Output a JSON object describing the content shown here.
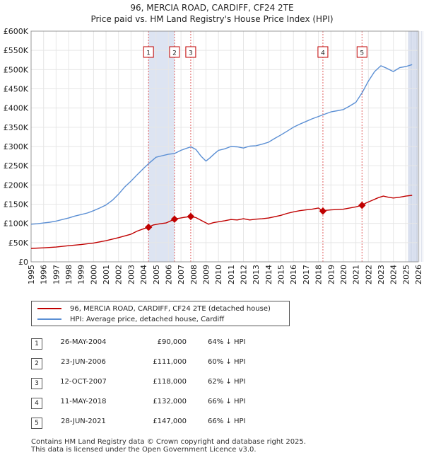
{
  "header": {
    "title_line1": "96, MERCIA ROAD, CARDIFF, CF24 2TE",
    "title_line2": "Price paid vs. HM Land Registry's House Price Index (HPI)"
  },
  "colors": {
    "property_line": "#c00000",
    "hpi_line": "#5b8fd4",
    "shade": "#dde4f2",
    "marker_line": "#e06060"
  },
  "chart_data": {
    "type": "line",
    "title": "Price paid vs. HM Land Registry's House Price Index (HPI)",
    "xlim": [
      1995,
      2026
    ],
    "ylim": [
      0,
      600000
    ],
    "x_ticks": [
      "1995",
      "1996",
      "1997",
      "1998",
      "1999",
      "2000",
      "2001",
      "2002",
      "2003",
      "2004",
      "2005",
      "2006",
      "2007",
      "2008",
      "2009",
      "2010",
      "2011",
      "2012",
      "2013",
      "2014",
      "2015",
      "2016",
      "2017",
      "2018",
      "2019",
      "2020",
      "2021",
      "2022",
      "2023",
      "2024",
      "2025",
      "2026"
    ],
    "y_ticks": [
      {
        "value": 0,
        "label": "£0"
      },
      {
        "value": 50000,
        "label": "£50K"
      },
      {
        "value": 100000,
        "label": "£100K"
      },
      {
        "value": 150000,
        "label": "£150K"
      },
      {
        "value": 200000,
        "label": "£200K"
      },
      {
        "value": 250000,
        "label": "£250K"
      },
      {
        "value": 300000,
        "label": "£300K"
      },
      {
        "value": 350000,
        "label": "£350K"
      },
      {
        "value": 400000,
        "label": "£400K"
      },
      {
        "value": 450000,
        "label": "£450K"
      },
      {
        "value": 500000,
        "label": "£500K"
      },
      {
        "value": 550000,
        "label": "£550K"
      },
      {
        "value": 600000,
        "label": "£600K"
      }
    ],
    "series": [
      {
        "name": "96, MERCIA ROAD, CARDIFF, CF24 2TE (detached house)",
        "color": "#c00000",
        "x": [
          1995.0,
          1996.0,
          1997.0,
          1998.0,
          1999.0,
          2000.0,
          2001.0,
          2002.0,
          2003.0,
          2003.5,
          2004.0,
          2004.4,
          2004.8,
          2005.3,
          2005.8,
          2006.48,
          2006.8,
          2007.3,
          2007.78,
          2008.2,
          2008.6,
          2009.2,
          2009.6,
          2010.5,
          2011.0,
          2011.5,
          2012.0,
          2012.5,
          2013.0,
          2013.5,
          2014.0,
          2015.0,
          2015.5,
          2016.0,
          2016.5,
          2017.0,
          2017.5,
          2018.0,
          2018.36,
          2018.6,
          2019.0,
          2019.5,
          2020.0,
          2020.5,
          2021.0,
          2021.49,
          2021.8,
          2022.3,
          2022.8,
          2023.2,
          2023.6,
          2024.0,
          2024.5,
          2025.0,
          2025.5
        ],
        "y": [
          35000,
          36500,
          38500,
          42000,
          45000,
          49000,
          55000,
          63000,
          72000,
          80000,
          86000,
          90000,
          96000,
          99000,
          101000,
          111000,
          113000,
          116000,
          118000,
          115000,
          108000,
          98000,
          102000,
          107000,
          110000,
          109000,
          112000,
          109000,
          111000,
          112000,
          114000,
          121000,
          126000,
          130000,
          133000,
          135000,
          137000,
          140000,
          132000,
          134000,
          135000,
          136000,
          137000,
          140000,
          143000,
          147000,
          153000,
          160000,
          167000,
          171000,
          168000,
          166000,
          168000,
          171000,
          173000
        ]
      },
      {
        "name": "HPI: Average price, detached house, Cardiff",
        "color": "#5b8fd4",
        "x": [
          1995.0,
          1995.5,
          1996.0,
          1996.5,
          1997.0,
          1997.5,
          1998.0,
          1998.5,
          1999.0,
          1999.5,
          2000.0,
          2000.5,
          2001.0,
          2001.5,
          2002.0,
          2002.5,
          2003.0,
          2003.5,
          2004.0,
          2004.5,
          2005.0,
          2005.5,
          2006.0,
          2006.5,
          2007.0,
          2007.5,
          2007.8,
          2008.2,
          2008.6,
          2009.0,
          2009.3,
          2009.7,
          2010.0,
          2010.5,
          2011.0,
          2011.5,
          2012.0,
          2012.5,
          2013.0,
          2013.5,
          2014.0,
          2014.5,
          2015.0,
          2015.5,
          2016.0,
          2016.5,
          2017.0,
          2017.5,
          2018.0,
          2018.5,
          2019.0,
          2019.5,
          2020.0,
          2020.5,
          2021.0,
          2021.5,
          2022.0,
          2022.5,
          2023.0,
          2023.5,
          2024.0,
          2024.5,
          2025.0,
          2025.5
        ],
        "y": [
          98000,
          99000,
          101000,
          103000,
          106000,
          110000,
          114000,
          119000,
          123000,
          127000,
          133000,
          140000,
          148000,
          160000,
          176000,
          195000,
          210000,
          227000,
          243000,
          258000,
          272000,
          276000,
          280000,
          282000,
          290000,
          296000,
          299000,
          292000,
          275000,
          262000,
          270000,
          282000,
          290000,
          294000,
          300000,
          299000,
          296000,
          301000,
          302000,
          306000,
          311000,
          321000,
          330000,
          340000,
          350000,
          358000,
          365000,
          372000,
          378000,
          384000,
          390000,
          393000,
          396000,
          405000,
          415000,
          440000,
          470000,
          495000,
          510000,
          503000,
          495000,
          505000,
          508000,
          513000
        ]
      }
    ],
    "sales": [
      {
        "num": "1",
        "x": 2004.4,
        "price": 90000
      },
      {
        "num": "2",
        "x": 2006.48,
        "price": 111000
      },
      {
        "num": "3",
        "x": 2007.78,
        "price": 118000
      },
      {
        "num": "4",
        "x": 2018.36,
        "price": 132000
      },
      {
        "num": "5",
        "x": 2021.49,
        "price": 147000
      }
    ],
    "shaded_ranges": [
      [
        2004.4,
        2006.48
      ],
      [
        2007.78,
        2007.78
      ],
      [
        2018.36,
        2018.36
      ],
      [
        2021.49,
        2021.49
      ],
      [
        2025.2,
        2026
      ]
    ]
  },
  "legend": {
    "property_label": "96, MERCIA ROAD, CARDIFF, CF24 2TE (detached house)",
    "hpi_label": "HPI: Average price, detached house, Cardiff"
  },
  "sales_table": [
    {
      "num": "1",
      "date": "26-MAY-2004",
      "price": "£90,000",
      "hpi": "64% ↓ HPI"
    },
    {
      "num": "2",
      "date": "23-JUN-2006",
      "price": "£111,000",
      "hpi": "60% ↓ HPI"
    },
    {
      "num": "3",
      "date": "12-OCT-2007",
      "price": "£118,000",
      "hpi": "62% ↓ HPI"
    },
    {
      "num": "4",
      "date": "11-MAY-2018",
      "price": "£132,000",
      "hpi": "66% ↓ HPI"
    },
    {
      "num": "5",
      "date": "28-JUN-2021",
      "price": "£147,000",
      "hpi": "66% ↓ HPI"
    }
  ],
  "footer": {
    "line1": "Contains HM Land Registry data © Crown copyright and database right 2025.",
    "line2": "This data is licensed under the Open Government Licence v3.0."
  }
}
